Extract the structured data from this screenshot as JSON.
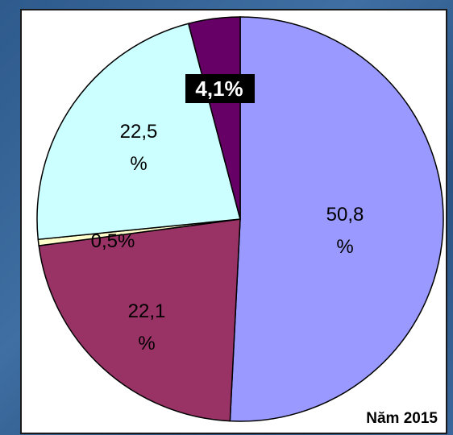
{
  "chart_data": {
    "type": "pie",
    "title": "Năm 2015",
    "values": [
      50.8,
      22.1,
      0.5,
      22.5,
      4.1
    ],
    "value_labels": [
      [
        "50,8",
        "%"
      ],
      [
        "22,1",
        "%"
      ],
      [
        "0,5%"
      ],
      [
        "22,5",
        "%"
      ],
      [
        "4,1%"
      ]
    ],
    "colors": [
      "#9999ff",
      "#993366",
      "#ffffcc",
      "#ccffff",
      "#660066"
    ]
  }
}
